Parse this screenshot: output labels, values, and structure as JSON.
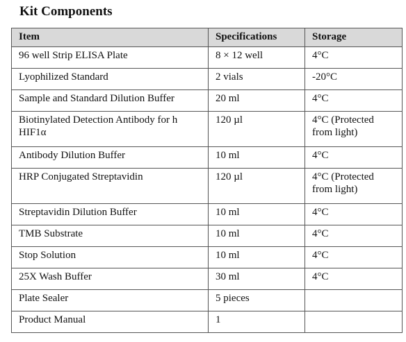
{
  "title": "Kit Components",
  "table": {
    "header": [
      "Item",
      "Specifications",
      "Storage"
    ],
    "rows": [
      [
        "96 well Strip ELISA Plate",
        "8 × 12 well",
        "4°C"
      ],
      [
        "Lyophilized Standard",
        "2 vials",
        "-20°C"
      ],
      [
        "Sample and Standard Dilution Buffer",
        "20 ml",
        "4°C"
      ],
      [
        "Biotinylated Detection Antibody  for h HIF1α",
        "120 µl",
        "4°C (Protected from light)"
      ],
      [
        "Antibody Dilution Buffer",
        "10 ml",
        "4°C"
      ],
      [
        "HRP Conjugated Streptavidin",
        "120 µl",
        "4°C (Protected from light)"
      ],
      [
        "Streptavidin Dilution Buffer",
        "10 ml",
        "4°C"
      ],
      [
        "TMB Substrate",
        "10 ml",
        "4°C"
      ],
      [
        "Stop Solution",
        "10 ml",
        "4°C"
      ],
      [
        "25X Wash Buffer",
        "30 ml",
        "4°C"
      ],
      [
        "Plate Sealer",
        "5 pieces"
      ],
      [
        "Product Manual",
        "1"
      ]
    ]
  }
}
